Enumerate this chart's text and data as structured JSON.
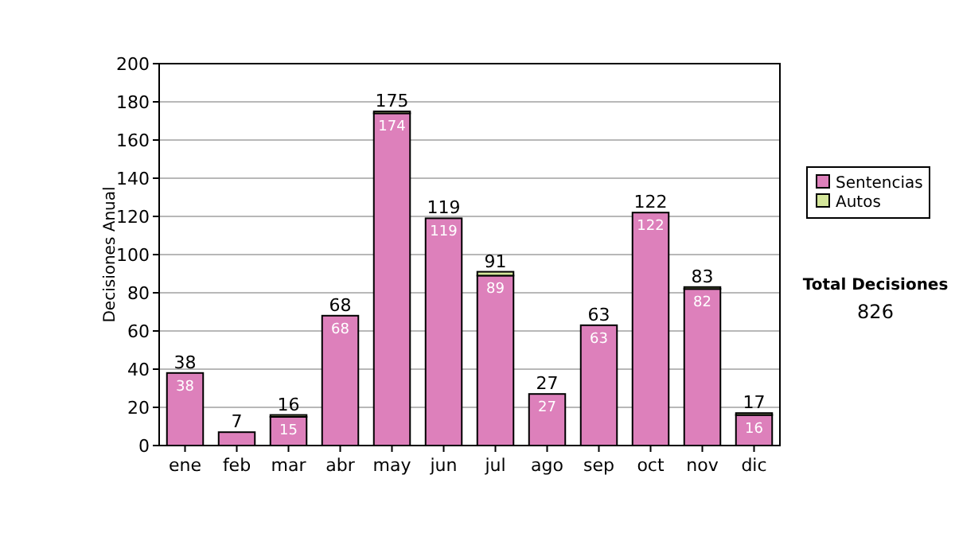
{
  "chart_data": {
    "type": "bar",
    "stacked": true,
    "ylabel": "Decisiones Anual",
    "categories": [
      "ene",
      "feb",
      "mar",
      "abr",
      "may",
      "jun",
      "jul",
      "ago",
      "sep",
      "oct",
      "nov",
      "dic"
    ],
    "series": [
      {
        "name": "Sentencias",
        "color": "#dd80bb",
        "values": [
          38,
          7,
          15,
          68,
          174,
          119,
          89,
          27,
          63,
          122,
          82,
          16
        ],
        "value_labels": [
          "38",
          null,
          "15",
          "68",
          "174",
          "119",
          "89",
          "27",
          "63",
          "122",
          "82",
          "16"
        ]
      },
      {
        "name": "Autos",
        "color": "#d4e69a",
        "values": [
          0,
          0,
          1,
          0,
          1,
          0,
          2,
          0,
          0,
          0,
          1,
          1
        ]
      }
    ],
    "totals": [
      "38",
      "7",
      "16",
      "68",
      "175",
      "119",
      "91",
      "27",
      "63",
      "122",
      "83",
      "17"
    ],
    "ylim": [
      0,
      200
    ],
    "yticks": [
      0,
      20,
      40,
      60,
      80,
      100,
      120,
      140,
      160,
      180,
      200
    ],
    "grid": "y",
    "legend": "right",
    "annotations": [
      "Total Decisiones",
      "826"
    ]
  }
}
